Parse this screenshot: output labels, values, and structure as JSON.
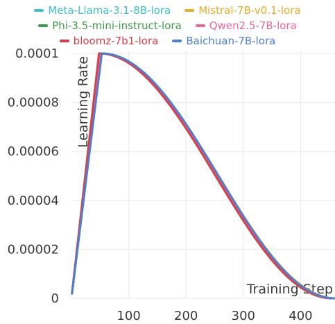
{
  "chart_data": {
    "type": "line",
    "title": "",
    "xlabel": "Training Step",
    "ylabel": "Learning Rate",
    "xlim": [
      0,
      460
    ],
    "ylim": [
      0,
      0.0001
    ],
    "x_ticks": [
      100,
      200,
      300,
      400
    ],
    "x_tick_labels": [
      "100",
      "200",
      "300",
      "400"
    ],
    "y_ticks": [
      0,
      2e-05,
      4e-05,
      6e-05,
      8e-05,
      0.0001
    ],
    "y_tick_labels": [
      "0",
      "0.00002",
      "0.00004",
      "0.00006",
      "0.00008",
      "0.0001"
    ],
    "grid": true,
    "legend_position": "top",
    "series": [
      {
        "name": "Meta-Llama-3.1-8B-lora",
        "color": "#3dbfcf",
        "warmup_steps": 50,
        "total_steps": 459
      },
      {
        "name": "Mistral-7B-v0.1-lora",
        "color": "#e8ac2a",
        "warmup_steps": 52,
        "total_steps": 462
      },
      {
        "name": "Phi-3.5-mini-instruct-lora",
        "color": "#3f9a4a",
        "warmup_steps": 50,
        "total_steps": 458
      },
      {
        "name": "Qwen2.5-7B-lora",
        "color": "#e8689a",
        "warmup_steps": 50,
        "total_steps": 457
      },
      {
        "name": "bloomz-7b1-lora",
        "color": "#d9404d",
        "warmup_steps": 48,
        "total_steps": 455
      },
      {
        "name": "Baichuan-7B-lora",
        "color": "#4d7fd1",
        "warmup_steps": 53,
        "total_steps": 460
      }
    ]
  }
}
